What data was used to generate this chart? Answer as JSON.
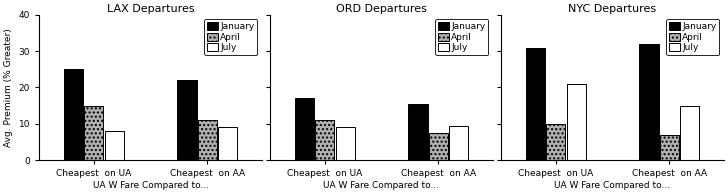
{
  "panels": [
    {
      "title": "LAX Departures",
      "groups": [
        "Cheapest  on UA",
        "Cheapest  on AA"
      ],
      "january": [
        25,
        22
      ],
      "april": [
        15,
        11
      ],
      "july": [
        8,
        9
      ]
    },
    {
      "title": "ORD Departures",
      "groups": [
        "Cheapest  on UA",
        "Cheapest  on AA"
      ],
      "january": [
        17,
        15.5
      ],
      "april": [
        11,
        7.5
      ],
      "july": [
        9,
        9.5
      ]
    },
    {
      "title": "NYC Departures",
      "groups": [
        "Cheapest  on UA",
        "Cheapest  on AA"
      ],
      "january": [
        31,
        32
      ],
      "april": [
        10,
        7
      ],
      "july": [
        21,
        15
      ]
    }
  ],
  "xlabel": "UA W Fare Compared to...",
  "ylabel": "Avg. Premium (% Greater)",
  "ylim": [
    0,
    40
  ],
  "yticks": [
    0,
    10,
    20,
    30,
    40
  ],
  "legend_labels": [
    "January",
    "April",
    "July"
  ],
  "background_color": "white",
  "title_fontsize": 8,
  "axis_fontsize": 6.5,
  "tick_fontsize": 6.5,
  "legend_fontsize": 6.5
}
